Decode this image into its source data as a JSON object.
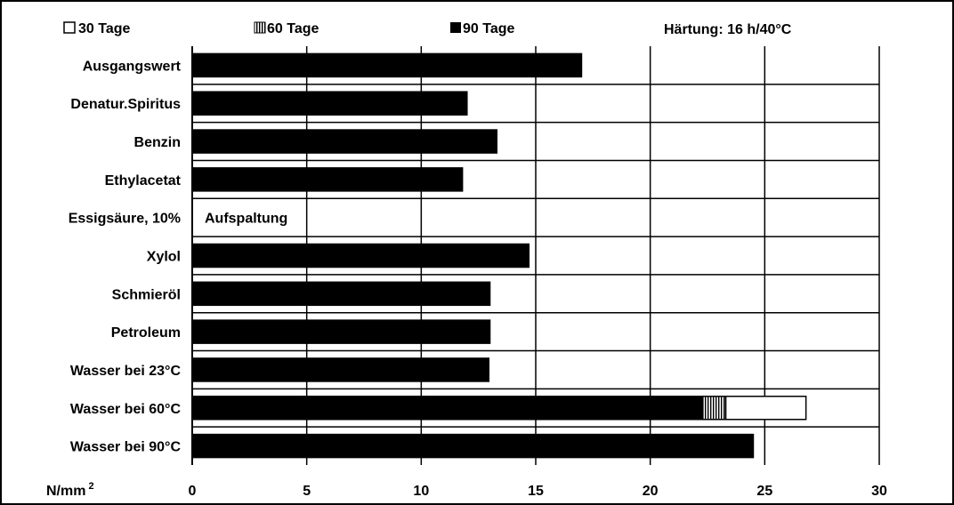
{
  "chart_data": {
    "type": "bar",
    "orientation": "horizontal",
    "stacked": true,
    "annotation_top_right": "Härtung: 16 h/40°C",
    "xlabel": "N/mm",
    "xlabel_superscript": "2",
    "xlim": [
      0,
      30
    ],
    "x_ticks": [
      "0",
      "5",
      "10",
      "15",
      "20",
      "25",
      "30"
    ],
    "grid": "vertical",
    "legend_position": "top",
    "categories": [
      "Ausgangswert",
      "Denatur.Spiritus",
      "Benzin",
      "Ethylacetat",
      "Essigsäure, 10%",
      "Xylol",
      "Schmieröl",
      "Petroleum",
      "Wasser bei 23°C",
      "Wasser bei 60°C",
      "Wasser bei 90°C"
    ],
    "series": [
      {
        "name": "90 Tage",
        "pattern": "solid",
        "color": "#000000",
        "values": [
          17.0,
          12.0,
          13.3,
          11.8,
          null,
          14.7,
          13.0,
          13.0,
          12.95,
          22.3,
          24.5
        ]
      },
      {
        "name": "60 Tage",
        "pattern": "vertical-hatch",
        "color": "#000000",
        "values": [
          null,
          null,
          null,
          null,
          null,
          null,
          null,
          null,
          null,
          1.0,
          null
        ]
      },
      {
        "name": "30 Tage",
        "pattern": "empty",
        "color": "#ffffff",
        "values": [
          null,
          null,
          null,
          null,
          null,
          null,
          null,
          null,
          null,
          3.5,
          null
        ]
      }
    ],
    "bar_annotations": [
      {
        "category_index": 4,
        "text": "Aufspaltung"
      }
    ]
  }
}
